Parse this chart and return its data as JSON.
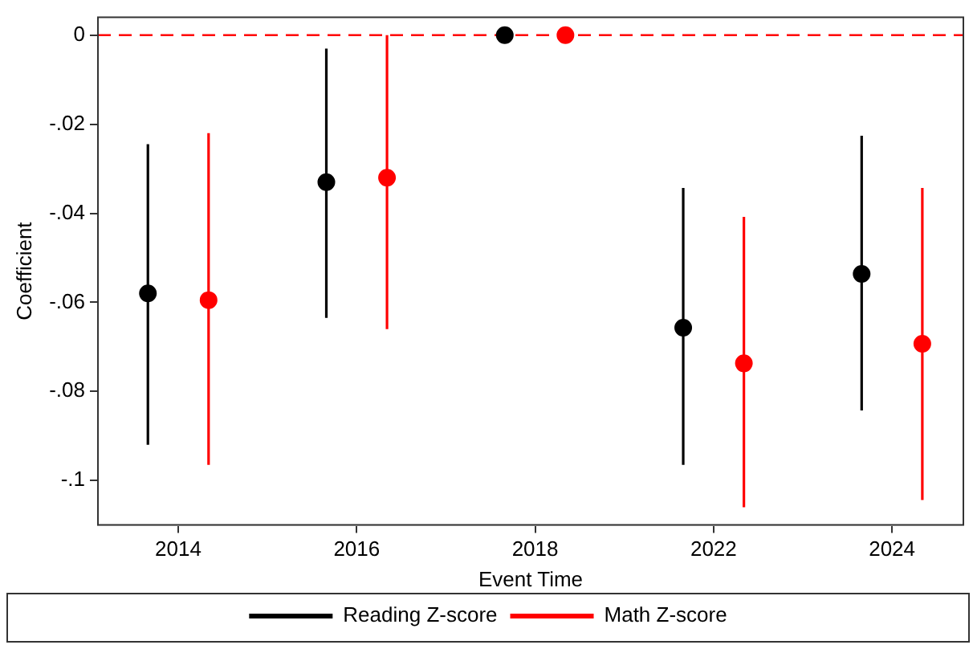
{
  "chart_data": {
    "type": "scatter",
    "xlabel": "Event Time",
    "ylabel": "Coefficient",
    "categories": [
      "2014",
      "2016",
      "2018",
      "2022",
      "2024"
    ],
    "series": [
      {
        "name": "Reading Z-score",
        "color": "#000000",
        "values": [
          -0.058,
          -0.033,
          0,
          -0.0657,
          -0.0536
        ],
        "errors": [
          [
            -0.092,
            -0.0245
          ],
          [
            -0.0635,
            -0.003
          ],
          null,
          [
            -0.0965,
            -0.0343
          ],
          [
            -0.0843,
            -0.0226
          ]
        ]
      },
      {
        "name": "Math Z-score",
        "color": "#ff0000",
        "values": [
          -0.0595,
          -0.032,
          0,
          -0.0737,
          -0.0693
        ],
        "errors": [
          [
            -0.0965,
            -0.022
          ],
          [
            -0.066,
            0
          ],
          null,
          [
            -0.106,
            -0.0408
          ],
          [
            -0.1044,
            -0.0343
          ]
        ]
      }
    ],
    "ylim": [
      -0.11,
      0.004
    ],
    "yticks": [
      {
        "value": 0,
        "label": "0"
      },
      {
        "value": -0.02,
        "label": "-.02"
      },
      {
        "value": -0.04,
        "label": "-.04"
      },
      {
        "value": -0.06,
        "label": "-.06"
      },
      {
        "value": -0.08,
        "label": "-.08"
      },
      {
        "value": -0.1,
        "label": "-.1"
      }
    ],
    "ref_lines": [
      {
        "axis": "y",
        "value": 0,
        "color": "#ff0000",
        "line_style": "dashed"
      }
    ],
    "grid": false,
    "legend": "bottom",
    "marker": "circle"
  }
}
